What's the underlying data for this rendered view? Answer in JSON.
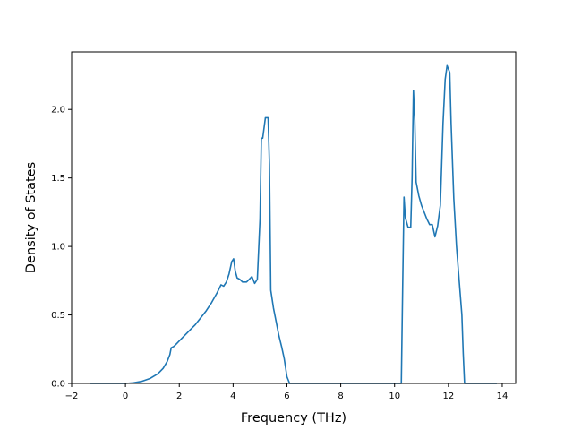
{
  "chart_data": {
    "type": "line",
    "title": "",
    "xlabel": "Frequency (THz)",
    "ylabel": "Density of States",
    "xlim": [
      -2,
      14.5
    ],
    "ylim": [
      0,
      2.42
    ],
    "xticks": [
      -2,
      0,
      2,
      4,
      6,
      8,
      10,
      12,
      14
    ],
    "xtick_labels": [
      "−2",
      "0",
      "2",
      "4",
      "6",
      "8",
      "10",
      "12",
      "14"
    ],
    "yticks": [
      0,
      0.5,
      1.0,
      1.5,
      2.0
    ],
    "ytick_labels": [
      "0.0",
      "0.5",
      "1.0",
      "1.5",
      "2.0"
    ],
    "grid": false,
    "legend": "none",
    "line_color": "#1f77b4",
    "series": [
      {
        "x": [
          -1.3,
          -0.5,
          0,
          0.3,
          0.6,
          0.9,
          1.2,
          1.4,
          1.55,
          1.65,
          1.7,
          1.8,
          1.9,
          2.0,
          2.2,
          2.4,
          2.6,
          2.8,
          3.0,
          3.2,
          3.4,
          3.55,
          3.65,
          3.75,
          3.85,
          3.95,
          4.02,
          4.08,
          4.15,
          4.25,
          4.35,
          4.5,
          4.6,
          4.7,
          4.8,
          4.9,
          5.0,
          5.05,
          5.1,
          5.2,
          5.3,
          5.35,
          5.4,
          5.5,
          5.6,
          5.7,
          5.8,
          5.9,
          6.0,
          6.1,
          6.2,
          8.0,
          10.0,
          10.25,
          10.3,
          10.35,
          10.4,
          10.5,
          10.6,
          10.65,
          10.7,
          10.75,
          10.8,
          10.9,
          11.0,
          11.1,
          11.2,
          11.3,
          11.4,
          11.5,
          11.6,
          11.7,
          11.8,
          11.88,
          11.95,
          12.05,
          12.1,
          12.2,
          12.3,
          12.4,
          12.5,
          12.55,
          12.6,
          13.0,
          13.8
        ],
        "y": [
          0,
          0,
          0,
          0.005,
          0.015,
          0.035,
          0.07,
          0.11,
          0.16,
          0.21,
          0.26,
          0.27,
          0.29,
          0.31,
          0.35,
          0.39,
          0.43,
          0.48,
          0.53,
          0.59,
          0.66,
          0.72,
          0.71,
          0.74,
          0.8,
          0.89,
          0.91,
          0.82,
          0.77,
          0.76,
          0.74,
          0.74,
          0.76,
          0.78,
          0.73,
          0.76,
          1.2,
          1.79,
          1.79,
          1.94,
          1.94,
          1.6,
          0.68,
          0.55,
          0.45,
          0.35,
          0.27,
          0.18,
          0.05,
          0.0,
          0.0,
          0.0,
          0.0,
          0.0,
          0.7,
          1.36,
          1.21,
          1.14,
          1.14,
          1.5,
          2.14,
          1.92,
          1.47,
          1.37,
          1.3,
          1.25,
          1.2,
          1.16,
          1.16,
          1.07,
          1.15,
          1.3,
          1.9,
          2.22,
          2.32,
          2.27,
          1.9,
          1.35,
          1.0,
          0.75,
          0.5,
          0.22,
          0.0,
          0.0,
          0.0
        ]
      }
    ]
  }
}
